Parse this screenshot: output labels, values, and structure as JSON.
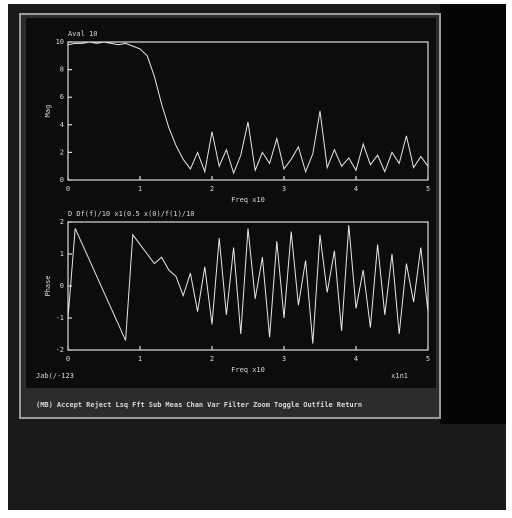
{
  "chart_data": [
    {
      "type": "line",
      "title": "Aval 10",
      "y_label": "Mag",
      "x_label": "Freq x10",
      "color": "#e6e6e6",
      "x": [
        0,
        0.1,
        0.2,
        0.3,
        0.4,
        0.5,
        0.6,
        0.7,
        0.8,
        0.9,
        1.0,
        1.1,
        1.2,
        1.3,
        1.4,
        1.5,
        1.6,
        1.7,
        1.8,
        1.9,
        2.0,
        2.1,
        2.2,
        2.3,
        2.4,
        2.5,
        2.6,
        2.7,
        2.8,
        2.9,
        3.0,
        3.1,
        3.2,
        3.3,
        3.4,
        3.5,
        3.6,
        3.7,
        3.8,
        3.9,
        4.0,
        4.1,
        4.2,
        4.3,
        4.4,
        4.5,
        4.6,
        4.7,
        4.8,
        4.9,
        5.0
      ],
      "series": [
        {
          "values": [
            9.8,
            9.9,
            9.9,
            10,
            9.9,
            10,
            9.9,
            9.8,
            9.9,
            9.7,
            9.5,
            9,
            7.5,
            5.5,
            3.8,
            2.5,
            1.5,
            0.8,
            2.0,
            0.6,
            3.5,
            1.0,
            2.2,
            0.5,
            1.8,
            4.2,
            0.7,
            2.0,
            1.2,
            3.0,
            0.8,
            1.5,
            2.4,
            0.6,
            1.9,
            5.0,
            0.9,
            2.2,
            1.0,
            1.6,
            0.7,
            2.6,
            1.1,
            1.8,
            0.6,
            2.0,
            1.2,
            3.2,
            0.9,
            1.7,
            1.0
          ]
        }
      ],
      "xlim": [
        0,
        5
      ],
      "xticks": [
        0,
        1,
        2,
        3,
        4,
        5
      ],
      "ylim": [
        0,
        10
      ],
      "yticks": [
        0,
        2,
        4,
        6,
        8,
        10
      ]
    },
    {
      "type": "line",
      "title": "D Df(f)/10   x1(0.5   x(0)/f(1)/10",
      "y_label": "Phase",
      "x_label": "Freq x10",
      "color": "#e6e6e6",
      "x": [
        0,
        0.1,
        0.2,
        0.3,
        0.4,
        0.5,
        0.6,
        0.7,
        0.8,
        0.9,
        1.0,
        1.1,
        1.2,
        1.3,
        1.4,
        1.5,
        1.6,
        1.7,
        1.8,
        1.9,
        2.0,
        2.1,
        2.2,
        2.3,
        2.4,
        2.5,
        2.6,
        2.7,
        2.8,
        2.9,
        3.0,
        3.1,
        3.2,
        3.3,
        3.4,
        3.5,
        3.6,
        3.7,
        3.8,
        3.9,
        4.0,
        4.1,
        4.2,
        4.3,
        4.4,
        4.5,
        4.6,
        4.7,
        4.8,
        4.9,
        5.0
      ],
      "series": [
        {
          "values": [
            -1.0,
            1.8,
            1.3,
            0.8,
            0.3,
            -0.2,
            -0.7,
            -1.2,
            -1.7,
            1.6,
            1.3,
            1.0,
            0.7,
            0.9,
            0.5,
            0.3,
            -0.3,
            0.4,
            -0.8,
            0.6,
            -1.2,
            1.5,
            -0.9,
            1.2,
            -1.5,
            1.8,
            -0.4,
            0.9,
            -1.6,
            1.4,
            -1.0,
            1.7,
            -0.6,
            0.8,
            -1.8,
            1.6,
            -0.2,
            1.1,
            -1.4,
            1.9,
            -0.7,
            0.5,
            -1.3,
            1.3,
            -0.9,
            1.0,
            -1.5,
            0.7,
            -0.5,
            1.2,
            -0.8
          ]
        }
      ],
      "xlim": [
        0,
        5
      ],
      "xticks": [
        0,
        1,
        2,
        3,
        4,
        5
      ],
      "ylim": [
        -2,
        2
      ],
      "yticks": [
        -2,
        -1,
        0,
        1,
        2
      ]
    }
  ],
  "status": {
    "left": "Jab(/-123",
    "right": "x1n1"
  },
  "menu": [
    "(MB)",
    "Accept",
    "Reject",
    "Lsq",
    "Fft",
    "Sub",
    "Meas",
    "Chan",
    "Var",
    "Filter",
    "Zoom",
    "Toggle",
    "Outfile",
    "Return"
  ]
}
